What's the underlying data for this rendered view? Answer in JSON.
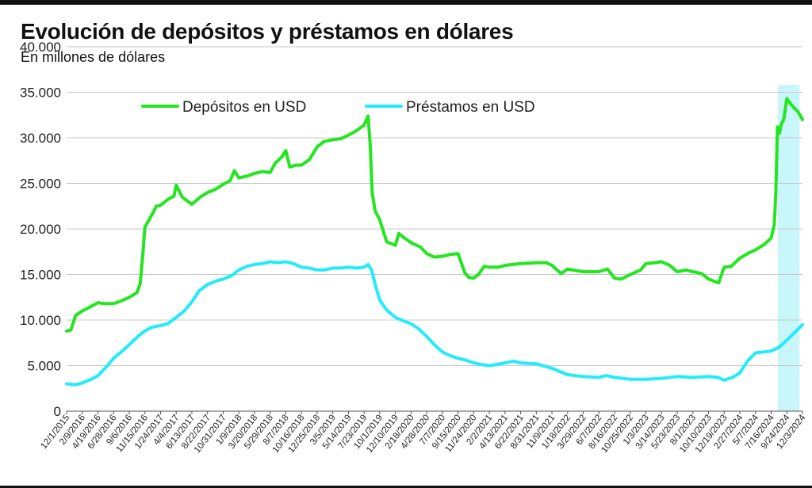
{
  "header": {
    "title": "Evolución de depósitos y préstamos en dólares",
    "subtitle": "En millones de dólares"
  },
  "chart_data": {
    "type": "line",
    "title": "Evolución de depósitos y préstamos en dólares",
    "subtitle": "En millones de dólares",
    "xlabel": "",
    "ylabel": "",
    "ylim": [
      0,
      40000
    ],
    "yticks": [
      0,
      5000,
      10000,
      15000,
      20000,
      25000,
      30000,
      35000,
      40000
    ],
    "ytick_labels": [
      "0",
      "5.000",
      "10.000",
      "15.000",
      "20.000",
      "25.000",
      "30.000",
      "35.000",
      "40.000"
    ],
    "xlim": [
      "2015-12-01",
      "2024-12-03"
    ],
    "x_tick_labels": [
      "12/1/2015",
      "2/9/2016",
      "4/19/2016",
      "6/28/2016",
      "9/6/2016",
      "11/15/2016",
      "1/24/2017",
      "4/4/2017",
      "6/13/2017",
      "8/22/2017",
      "10/31/2017",
      "1/9/2018",
      "3/20/2018",
      "5/29/2018",
      "8/7/2018",
      "10/16/2018",
      "12/25/2018",
      "3/5/2019",
      "5/14/2019",
      "7/23/2019",
      "10/1/2019",
      "12/10/2019",
      "2/18/2020",
      "4/28/2020",
      "7/7/2020",
      "9/15/2020",
      "11/24/2020",
      "2/2/2021",
      "4/13/2021",
      "6/22/2021",
      "8/31/2021",
      "11/9/2021",
      "1/18/2022",
      "3/29/2022",
      "6/7/2022",
      "8/16/2022",
      "10/25/2022",
      "1/3/2023",
      "3/14/2023",
      "5/23/2023",
      "8/1/2023",
      "10/10/2023",
      "12/19/2023",
      "2/27/2024",
      "5/7/2024",
      "7/16/2024",
      "9/24/2024",
      "12/3/2024"
    ],
    "grid": true,
    "legend_position": "top-center",
    "highlight": {
      "from": "2024-08-15",
      "to": "2024-11-20",
      "color": "#c9f6fb"
    },
    "series": [
      {
        "name": "Depósitos en USD",
        "color": "#22e61e",
        "points": [
          [
            "2015-12-01",
            8800
          ],
          [
            "2015-12-20",
            8900
          ],
          [
            "2016-01-10",
            10500
          ],
          [
            "2016-02-09",
            11000
          ],
          [
            "2016-03-20",
            11500
          ],
          [
            "2016-04-19",
            11900
          ],
          [
            "2016-05-20",
            11800
          ],
          [
            "2016-06-28",
            11800
          ],
          [
            "2016-08-01",
            12100
          ],
          [
            "2016-09-06",
            12500
          ],
          [
            "2016-10-10",
            13000
          ],
          [
            "2016-10-25",
            14000
          ],
          [
            "2016-11-05",
            17000
          ],
          [
            "2016-11-15",
            20200
          ],
          [
            "2016-12-15",
            21500
          ],
          [
            "2017-01-05",
            22500
          ],
          [
            "2017-01-24",
            22600
          ],
          [
            "2017-03-01",
            23300
          ],
          [
            "2017-03-25",
            23600
          ],
          [
            "2017-04-04",
            24800
          ],
          [
            "2017-05-01",
            23500
          ],
          [
            "2017-06-13",
            22700
          ],
          [
            "2017-07-20",
            23500
          ],
          [
            "2017-08-22",
            24000
          ],
          [
            "2017-10-01",
            24400
          ],
          [
            "2017-10-31",
            24900
          ],
          [
            "2017-12-01",
            25300
          ],
          [
            "2017-12-20",
            26400
          ],
          [
            "2018-01-09",
            25600
          ],
          [
            "2018-02-15",
            25800
          ],
          [
            "2018-03-20",
            26100
          ],
          [
            "2018-04-25",
            26300
          ],
          [
            "2018-05-29",
            26200
          ],
          [
            "2018-06-20",
            27200
          ],
          [
            "2018-07-20",
            27900
          ],
          [
            "2018-08-07",
            28600
          ],
          [
            "2018-08-25",
            26800
          ],
          [
            "2018-09-20",
            27000
          ],
          [
            "2018-10-16",
            27000
          ],
          [
            "2018-11-20",
            27600
          ],
          [
            "2018-12-25",
            29000
          ],
          [
            "2019-01-25",
            29600
          ],
          [
            "2019-03-05",
            29800
          ],
          [
            "2019-04-10",
            29900
          ],
          [
            "2019-05-14",
            30300
          ],
          [
            "2019-06-20",
            30800
          ],
          [
            "2019-07-23",
            31400
          ],
          [
            "2019-08-10",
            32400
          ],
          [
            "2019-08-20",
            29000
          ],
          [
            "2019-08-28",
            24000
          ],
          [
            "2019-09-10",
            22000
          ],
          [
            "2019-10-01",
            21000
          ],
          [
            "2019-11-01",
            18600
          ],
          [
            "2019-12-10",
            18200
          ],
          [
            "2019-12-25",
            19500
          ],
          [
            "2020-01-20",
            19000
          ],
          [
            "2020-02-18",
            18500
          ],
          [
            "2020-04-01",
            18000
          ],
          [
            "2020-04-28",
            17300
          ],
          [
            "2020-06-01",
            16900
          ],
          [
            "2020-07-07",
            17000
          ],
          [
            "2020-08-10",
            17200
          ],
          [
            "2020-09-15",
            17300
          ],
          [
            "2020-10-15",
            15200
          ],
          [
            "2020-11-01",
            14700
          ],
          [
            "2020-11-24",
            14600
          ],
          [
            "2020-12-15",
            15000
          ],
          [
            "2021-01-10",
            15900
          ],
          [
            "2021-02-02",
            15800
          ],
          [
            "2021-03-15",
            15800
          ],
          [
            "2021-04-13",
            16000
          ],
          [
            "2021-06-22",
            16200
          ],
          [
            "2021-08-31",
            16300
          ],
          [
            "2021-10-15",
            16300
          ],
          [
            "2021-11-09",
            16000
          ],
          [
            "2021-12-20",
            15100
          ],
          [
            "2022-01-18",
            15600
          ],
          [
            "2022-03-29",
            15300
          ],
          [
            "2022-06-07",
            15300
          ],
          [
            "2022-07-15",
            15600
          ],
          [
            "2022-08-16",
            14600
          ],
          [
            "2022-09-15",
            14500
          ],
          [
            "2022-10-25",
            15000
          ],
          [
            "2022-12-10",
            15500
          ],
          [
            "2023-01-03",
            16200
          ],
          [
            "2023-02-10",
            16300
          ],
          [
            "2023-03-14",
            16400
          ],
          [
            "2023-04-20",
            16000
          ],
          [
            "2023-05-23",
            15300
          ],
          [
            "2023-07-01",
            15500
          ],
          [
            "2023-08-01",
            15300
          ],
          [
            "2023-09-10",
            15100
          ],
          [
            "2023-10-10",
            14500
          ],
          [
            "2023-11-10",
            14200
          ],
          [
            "2023-11-25",
            14100
          ],
          [
            "2023-12-10",
            15200
          ],
          [
            "2023-12-19",
            15800
          ],
          [
            "2024-01-20",
            15900
          ],
          [
            "2024-02-27",
            16800
          ],
          [
            "2024-04-10",
            17400
          ],
          [
            "2024-05-07",
            17700
          ],
          [
            "2024-06-15",
            18300
          ],
          [
            "2024-07-16",
            19000
          ],
          [
            "2024-07-30",
            20500
          ],
          [
            "2024-08-06",
            24000
          ],
          [
            "2024-08-13",
            31200
          ],
          [
            "2024-08-22",
            30500
          ],
          [
            "2024-08-30",
            31500
          ],
          [
            "2024-09-10",
            32000
          ],
          [
            "2024-09-24",
            34300
          ],
          [
            "2024-10-15",
            33600
          ],
          [
            "2024-11-15",
            32800
          ],
          [
            "2024-12-03",
            32000
          ]
        ]
      },
      {
        "name": "Préstamos en USD",
        "color": "#22ecfb",
        "points": [
          [
            "2015-12-01",
            3000
          ],
          [
            "2016-01-10",
            2900
          ],
          [
            "2016-02-09",
            3100
          ],
          [
            "2016-03-20",
            3500
          ],
          [
            "2016-04-19",
            3900
          ],
          [
            "2016-06-01",
            5000
          ],
          [
            "2016-06-28",
            5800
          ],
          [
            "2016-08-01",
            6500
          ],
          [
            "2016-09-06",
            7300
          ],
          [
            "2016-10-15",
            8200
          ],
          [
            "2016-11-15",
            8800
          ],
          [
            "2016-12-15",
            9200
          ],
          [
            "2017-01-24",
            9400
          ],
          [
            "2017-02-25",
            9600
          ],
          [
            "2017-04-04",
            10300
          ],
          [
            "2017-05-10",
            11000
          ],
          [
            "2017-06-13",
            12000
          ],
          [
            "2017-07-15",
            13200
          ],
          [
            "2017-08-22",
            13900
          ],
          [
            "2017-10-01",
            14300
          ],
          [
            "2017-10-31",
            14500
          ],
          [
            "2017-12-10",
            14900
          ],
          [
            "2018-01-09",
            15500
          ],
          [
            "2018-02-15",
            15900
          ],
          [
            "2018-03-20",
            16100
          ],
          [
            "2018-04-25",
            16200
          ],
          [
            "2018-05-29",
            16400
          ],
          [
            "2018-07-01",
            16300
          ],
          [
            "2018-08-07",
            16400
          ],
          [
            "2018-09-10",
            16200
          ],
          [
            "2018-10-16",
            15800
          ],
          [
            "2018-11-20",
            15700
          ],
          [
            "2018-12-25",
            15500
          ],
          [
            "2019-01-25",
            15500
          ],
          [
            "2019-03-05",
            15700
          ],
          [
            "2019-04-10",
            15700
          ],
          [
            "2019-05-14",
            15800
          ],
          [
            "2019-06-20",
            15700
          ],
          [
            "2019-07-23",
            15800
          ],
          [
            "2019-08-10",
            16100
          ],
          [
            "2019-08-25",
            15500
          ],
          [
            "2019-09-15",
            13500
          ],
          [
            "2019-10-01",
            12200
          ],
          [
            "2019-11-01",
            11100
          ],
          [
            "2019-12-10",
            10300
          ],
          [
            "2020-01-15",
            9900
          ],
          [
            "2020-02-18",
            9600
          ],
          [
            "2020-03-25",
            9000
          ],
          [
            "2020-04-28",
            8200
          ],
          [
            "2020-06-01",
            7300
          ],
          [
            "2020-07-07",
            6500
          ],
          [
            "2020-08-10",
            6100
          ],
          [
            "2020-09-15",
            5800
          ],
          [
            "2020-10-20",
            5600
          ],
          [
            "2020-11-24",
            5300
          ],
          [
            "2021-01-01",
            5100
          ],
          [
            "2021-02-02",
            5000
          ],
          [
            "2021-03-01",
            5100
          ],
          [
            "2021-04-13",
            5300
          ],
          [
            "2021-05-20",
            5500
          ],
          [
            "2021-06-22",
            5300
          ],
          [
            "2021-08-31",
            5200
          ],
          [
            "2021-11-09",
            4700
          ],
          [
            "2021-12-20",
            4300
          ],
          [
            "2022-01-18",
            4000
          ],
          [
            "2022-03-29",
            3800
          ],
          [
            "2022-06-07",
            3700
          ],
          [
            "2022-07-10",
            3900
          ],
          [
            "2022-08-16",
            3700
          ],
          [
            "2022-10-25",
            3500
          ],
          [
            "2023-01-03",
            3500
          ],
          [
            "2023-03-14",
            3600
          ],
          [
            "2023-05-23",
            3800
          ],
          [
            "2023-08-01",
            3700
          ],
          [
            "2023-10-10",
            3800
          ],
          [
            "2023-11-20",
            3700
          ],
          [
            "2023-12-19",
            3400
          ],
          [
            "2024-01-25",
            3700
          ],
          [
            "2024-02-27",
            4200
          ],
          [
            "2024-04-01",
            5500
          ],
          [
            "2024-05-07",
            6400
          ],
          [
            "2024-06-15",
            6500
          ],
          [
            "2024-07-16",
            6600
          ],
          [
            "2024-08-20",
            7000
          ],
          [
            "2024-09-24",
            7800
          ],
          [
            "2024-11-01",
            8700
          ],
          [
            "2024-12-03",
            9500
          ]
        ]
      }
    ]
  }
}
